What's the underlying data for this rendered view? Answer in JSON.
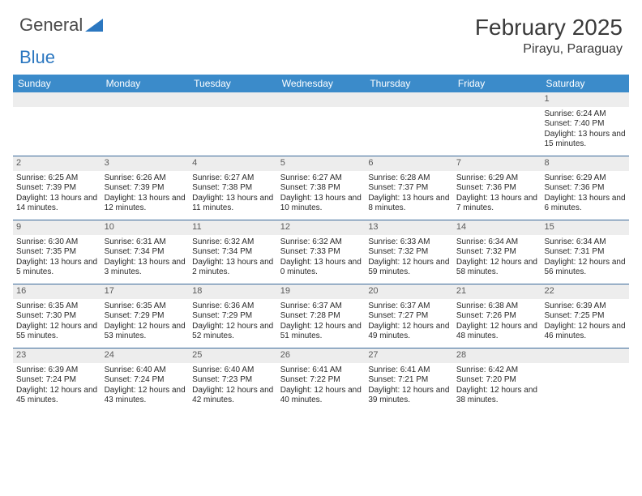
{
  "logo": {
    "text1": "General",
    "text2": "Blue"
  },
  "title": "February 2025",
  "location": "Pirayu, Paraguay",
  "colors": {
    "header_bg": "#3b8bca",
    "header_text": "#ffffff",
    "rule": "#3b6a9a",
    "daynum_bg": "#ededed",
    "body_text": "#2a2a2a",
    "logo_gray": "#4a4a4a",
    "logo_blue": "#2b77c0"
  },
  "dow": [
    "Sunday",
    "Monday",
    "Tuesday",
    "Wednesday",
    "Thursday",
    "Friday",
    "Saturday"
  ],
  "weeks": [
    [
      {
        "n": "",
        "sr": "",
        "ss": "",
        "dl": ""
      },
      {
        "n": "",
        "sr": "",
        "ss": "",
        "dl": ""
      },
      {
        "n": "",
        "sr": "",
        "ss": "",
        "dl": ""
      },
      {
        "n": "",
        "sr": "",
        "ss": "",
        "dl": ""
      },
      {
        "n": "",
        "sr": "",
        "ss": "",
        "dl": ""
      },
      {
        "n": "",
        "sr": "",
        "ss": "",
        "dl": ""
      },
      {
        "n": "1",
        "sr": "Sunrise: 6:24 AM",
        "ss": "Sunset: 7:40 PM",
        "dl": "Daylight: 13 hours and 15 minutes."
      }
    ],
    [
      {
        "n": "2",
        "sr": "Sunrise: 6:25 AM",
        "ss": "Sunset: 7:39 PM",
        "dl": "Daylight: 13 hours and 14 minutes."
      },
      {
        "n": "3",
        "sr": "Sunrise: 6:26 AM",
        "ss": "Sunset: 7:39 PM",
        "dl": "Daylight: 13 hours and 12 minutes."
      },
      {
        "n": "4",
        "sr": "Sunrise: 6:27 AM",
        "ss": "Sunset: 7:38 PM",
        "dl": "Daylight: 13 hours and 11 minutes."
      },
      {
        "n": "5",
        "sr": "Sunrise: 6:27 AM",
        "ss": "Sunset: 7:38 PM",
        "dl": "Daylight: 13 hours and 10 minutes."
      },
      {
        "n": "6",
        "sr": "Sunrise: 6:28 AM",
        "ss": "Sunset: 7:37 PM",
        "dl": "Daylight: 13 hours and 8 minutes."
      },
      {
        "n": "7",
        "sr": "Sunrise: 6:29 AM",
        "ss": "Sunset: 7:36 PM",
        "dl": "Daylight: 13 hours and 7 minutes."
      },
      {
        "n": "8",
        "sr": "Sunrise: 6:29 AM",
        "ss": "Sunset: 7:36 PM",
        "dl": "Daylight: 13 hours and 6 minutes."
      }
    ],
    [
      {
        "n": "9",
        "sr": "Sunrise: 6:30 AM",
        "ss": "Sunset: 7:35 PM",
        "dl": "Daylight: 13 hours and 5 minutes."
      },
      {
        "n": "10",
        "sr": "Sunrise: 6:31 AM",
        "ss": "Sunset: 7:34 PM",
        "dl": "Daylight: 13 hours and 3 minutes."
      },
      {
        "n": "11",
        "sr": "Sunrise: 6:32 AM",
        "ss": "Sunset: 7:34 PM",
        "dl": "Daylight: 13 hours and 2 minutes."
      },
      {
        "n": "12",
        "sr": "Sunrise: 6:32 AM",
        "ss": "Sunset: 7:33 PM",
        "dl": "Daylight: 13 hours and 0 minutes."
      },
      {
        "n": "13",
        "sr": "Sunrise: 6:33 AM",
        "ss": "Sunset: 7:32 PM",
        "dl": "Daylight: 12 hours and 59 minutes."
      },
      {
        "n": "14",
        "sr": "Sunrise: 6:34 AM",
        "ss": "Sunset: 7:32 PM",
        "dl": "Daylight: 12 hours and 58 minutes."
      },
      {
        "n": "15",
        "sr": "Sunrise: 6:34 AM",
        "ss": "Sunset: 7:31 PM",
        "dl": "Daylight: 12 hours and 56 minutes."
      }
    ],
    [
      {
        "n": "16",
        "sr": "Sunrise: 6:35 AM",
        "ss": "Sunset: 7:30 PM",
        "dl": "Daylight: 12 hours and 55 minutes."
      },
      {
        "n": "17",
        "sr": "Sunrise: 6:35 AM",
        "ss": "Sunset: 7:29 PM",
        "dl": "Daylight: 12 hours and 53 minutes."
      },
      {
        "n": "18",
        "sr": "Sunrise: 6:36 AM",
        "ss": "Sunset: 7:29 PM",
        "dl": "Daylight: 12 hours and 52 minutes."
      },
      {
        "n": "19",
        "sr": "Sunrise: 6:37 AM",
        "ss": "Sunset: 7:28 PM",
        "dl": "Daylight: 12 hours and 51 minutes."
      },
      {
        "n": "20",
        "sr": "Sunrise: 6:37 AM",
        "ss": "Sunset: 7:27 PM",
        "dl": "Daylight: 12 hours and 49 minutes."
      },
      {
        "n": "21",
        "sr": "Sunrise: 6:38 AM",
        "ss": "Sunset: 7:26 PM",
        "dl": "Daylight: 12 hours and 48 minutes."
      },
      {
        "n": "22",
        "sr": "Sunrise: 6:39 AM",
        "ss": "Sunset: 7:25 PM",
        "dl": "Daylight: 12 hours and 46 minutes."
      }
    ],
    [
      {
        "n": "23",
        "sr": "Sunrise: 6:39 AM",
        "ss": "Sunset: 7:24 PM",
        "dl": "Daylight: 12 hours and 45 minutes."
      },
      {
        "n": "24",
        "sr": "Sunrise: 6:40 AM",
        "ss": "Sunset: 7:24 PM",
        "dl": "Daylight: 12 hours and 43 minutes."
      },
      {
        "n": "25",
        "sr": "Sunrise: 6:40 AM",
        "ss": "Sunset: 7:23 PM",
        "dl": "Daylight: 12 hours and 42 minutes."
      },
      {
        "n": "26",
        "sr": "Sunrise: 6:41 AM",
        "ss": "Sunset: 7:22 PM",
        "dl": "Daylight: 12 hours and 40 minutes."
      },
      {
        "n": "27",
        "sr": "Sunrise: 6:41 AM",
        "ss": "Sunset: 7:21 PM",
        "dl": "Daylight: 12 hours and 39 minutes."
      },
      {
        "n": "28",
        "sr": "Sunrise: 6:42 AM",
        "ss": "Sunset: 7:20 PM",
        "dl": "Daylight: 12 hours and 38 minutes."
      },
      {
        "n": "",
        "sr": "",
        "ss": "",
        "dl": ""
      }
    ]
  ]
}
